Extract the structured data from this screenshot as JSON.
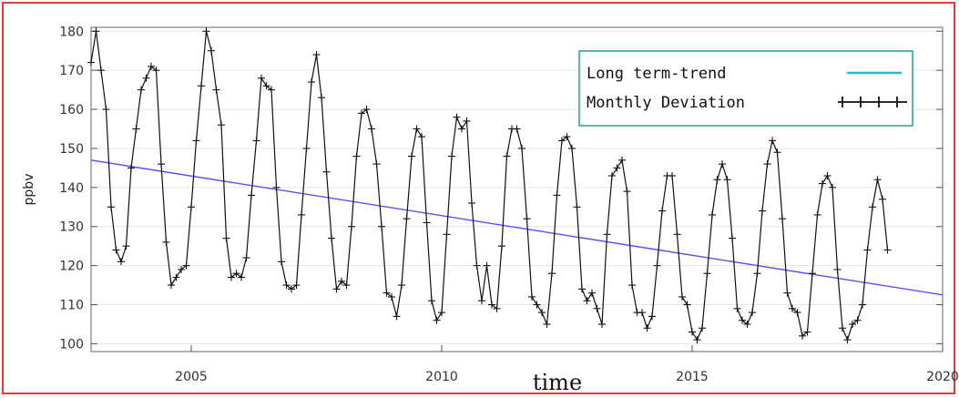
{
  "chart_data": {
    "type": "line",
    "xlabel": "time",
    "ylabel": "ppbv",
    "xlim": [
      2003,
      2020
    ],
    "ylim": [
      98,
      181
    ],
    "x_ticks": [
      "2005",
      "2010",
      "2015",
      "2020"
    ],
    "y_ticks": [
      "100",
      "110",
      "120",
      "130",
      "140",
      "150",
      "160",
      "170",
      "180"
    ],
    "legend_position": "top-right",
    "series": [
      {
        "name": "Long term-trend",
        "color": "#5555ee",
        "legend_color": "#22bbdd",
        "x": [
          2003.0,
          2020.0
        ],
        "y": [
          147,
          112.5
        ]
      },
      {
        "name": "Monthly Deviation",
        "color": "#111111",
        "x": [
          2003.0,
          2003.1,
          2003.2,
          2003.3,
          2003.4,
          2003.5,
          2003.6,
          2003.7,
          2003.8,
          2003.9,
          2004.0,
          2004.1,
          2004.2,
          2004.3,
          2004.4,
          2004.5,
          2004.6,
          2004.7,
          2004.8,
          2004.9,
          2005.0,
          2005.1,
          2005.2,
          2005.3,
          2005.4,
          2005.5,
          2005.6,
          2005.7,
          2005.8,
          2005.9,
          2006.0,
          2006.1,
          2006.2,
          2006.3,
          2006.4,
          2006.5,
          2006.6,
          2006.7,
          2006.8,
          2006.9,
          2007.0,
          2007.1,
          2007.2,
          2007.3,
          2007.4,
          2007.5,
          2007.6,
          2007.7,
          2007.8,
          2007.9,
          2008.0,
          2008.1,
          2008.2,
          2008.3,
          2008.4,
          2008.5,
          2008.6,
          2008.7,
          2008.8,
          2008.9,
          2009.0,
          2009.1,
          2009.2,
          2009.3,
          2009.4,
          2009.5,
          2009.6,
          2009.7,
          2009.8,
          2009.9,
          2010.0,
          2010.1,
          2010.2,
          2010.3,
          2010.4,
          2010.5,
          2010.6,
          2010.7,
          2010.8,
          2010.9,
          2011.0,
          2011.1,
          2011.2,
          2011.3,
          2011.4,
          2011.5,
          2011.6,
          2011.7,
          2011.8,
          2011.9,
          2012.0,
          2012.1,
          2012.2,
          2012.3,
          2012.4,
          2012.5,
          2012.6,
          2012.7,
          2012.8,
          2012.9,
          2013.0,
          2013.1,
          2013.2,
          2013.3,
          2013.4,
          2013.5,
          2013.6,
          2013.7,
          2013.8,
          2013.9,
          2014.0,
          2014.1,
          2014.2,
          2014.3,
          2014.4,
          2014.5,
          2014.6,
          2014.7,
          2014.8,
          2014.9,
          2015.0,
          2015.1,
          2015.2,
          2015.3,
          2015.4,
          2015.5,
          2015.6,
          2015.7,
          2015.8,
          2015.9,
          2016.0,
          2016.1,
          2016.2,
          2016.3,
          2016.4,
          2016.5,
          2016.6,
          2016.7,
          2016.8,
          2016.9,
          2017.0,
          2017.1,
          2017.2,
          2017.3,
          2017.4,
          2017.5,
          2017.6,
          2017.7,
          2017.8,
          2017.9,
          2018.0,
          2018.1,
          2018.2,
          2018.3,
          2018.4,
          2018.5,
          2018.6,
          2018.7,
          2018.8,
          2018.9
        ],
        "y": [
          172,
          180,
          170,
          160,
          135,
          124,
          121,
          125,
          145,
          155,
          165,
          168,
          171,
          170,
          146,
          126,
          115,
          117,
          119,
          120,
          135,
          152,
          166,
          180,
          175,
          165,
          156,
          127,
          117,
          118,
          117,
          122,
          138,
          152,
          168,
          166,
          165,
          140,
          121,
          115,
          114,
          115,
          133,
          150,
          167,
          174,
          163,
          144,
          127,
          114,
          116,
          115,
          130,
          148,
          159,
          160,
          155,
          146,
          130,
          113,
          112,
          107,
          115,
          132,
          148,
          155,
          153,
          131,
          111,
          106,
          108,
          128,
          148,
          158,
          155,
          157,
          136,
          120,
          111,
          120,
          110,
          109,
          125,
          148,
          155,
          155,
          150,
          132,
          112,
          110,
          108,
          105,
          118,
          138,
          152,
          153,
          150,
          135,
          114,
          111,
          113,
          109,
          105,
          128,
          143,
          145,
          147,
          139,
          115,
          108,
          108,
          104,
          107,
          120,
          134,
          143,
          143,
          128,
          112,
          110,
          103,
          101,
          104,
          118,
          133,
          142,
          146,
          142,
          127,
          109,
          106,
          105,
          108,
          118,
          134,
          146,
          152,
          149,
          132,
          113,
          109,
          108,
          102,
          103,
          118,
          133,
          141,
          143,
          140,
          119,
          104,
          101,
          105,
          106,
          110,
          124,
          135,
          142,
          137,
          124
        ]
      }
    ]
  }
}
